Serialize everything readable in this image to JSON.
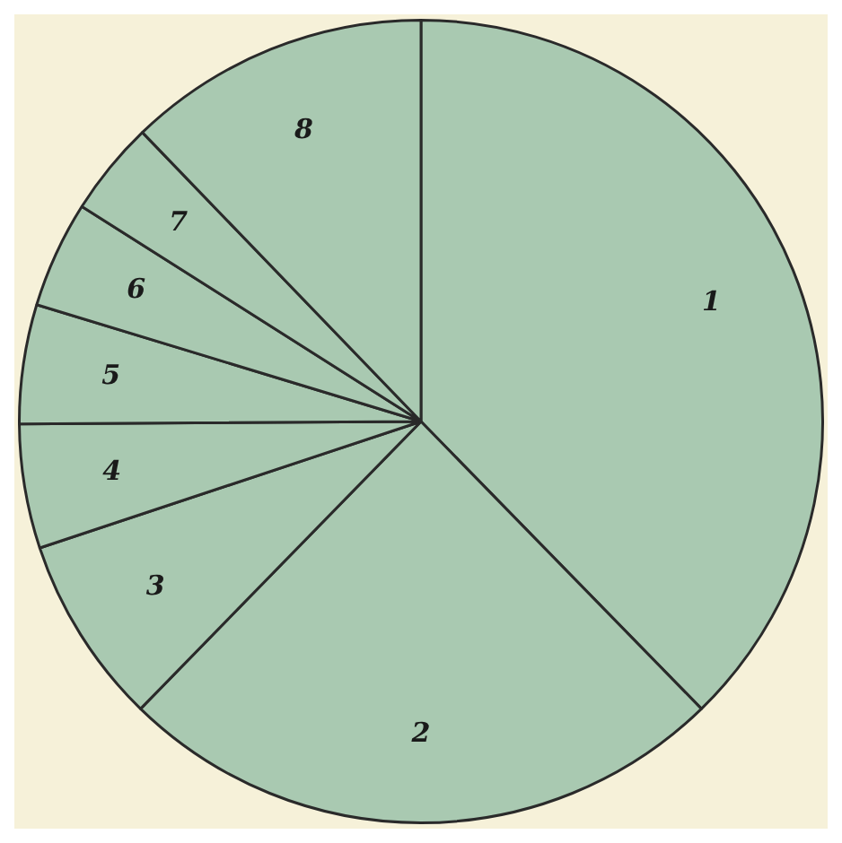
{
  "chart_data": {
    "type": "pie",
    "categories": [
      "1",
      "2",
      "3",
      "4",
      "5",
      "6",
      "7",
      "8"
    ],
    "values": [
      37.7,
      24.6,
      7.6,
      5,
      4.8,
      4.3,
      3.8,
      12.2
    ],
    "colors": [
      "#a9c9b1",
      "#a9c9b1",
      "#a9c9b1",
      "#a9c9b1",
      "#a9c9b1",
      "#a9c9b1",
      "#a9c9b1",
      "#a9c9b1"
    ]
  }
}
